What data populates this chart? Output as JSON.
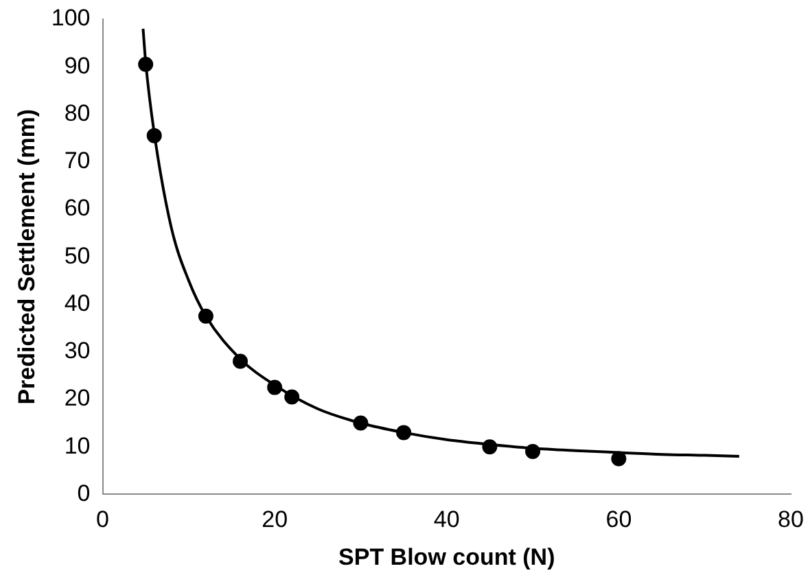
{
  "chart_data": {
    "type": "scatter",
    "xlabel": "SPT Blow count (N)",
    "ylabel": "Predicted Settlement (mm)",
    "xlim": [
      0,
      80
    ],
    "xticks": [
      0,
      20,
      40,
      60,
      80
    ],
    "ylim": [
      0,
      100
    ],
    "yticks": [
      0,
      10,
      20,
      30,
      40,
      50,
      60,
      70,
      80,
      90,
      100
    ],
    "grid": false,
    "legend": false,
    "marker": "circle",
    "series": [
      {
        "type": "scatter",
        "color": "#000000",
        "x": [
          5,
          6,
          12,
          16,
          20,
          22,
          30,
          35,
          45,
          50,
          60
        ],
        "values": [
          90.5,
          75.5,
          37.5,
          28,
          22.5,
          20.5,
          15,
          13,
          10,
          9,
          7.5
        ]
      },
      {
        "type": "line",
        "color": "#000000",
        "marker": "none",
        "x": [
          4.7,
          5,
          6,
          8,
          10,
          12,
          16,
          20,
          25,
          30,
          35,
          40,
          45,
          50,
          55,
          60,
          65,
          70,
          74
        ],
        "values": [
          98,
          91,
          76,
          56,
          45,
          37.5,
          28.5,
          23,
          18,
          15,
          13,
          11.5,
          10.5,
          9.7,
          9.2,
          8.8,
          8.4,
          8.2,
          8
        ]
      }
    ]
  }
}
